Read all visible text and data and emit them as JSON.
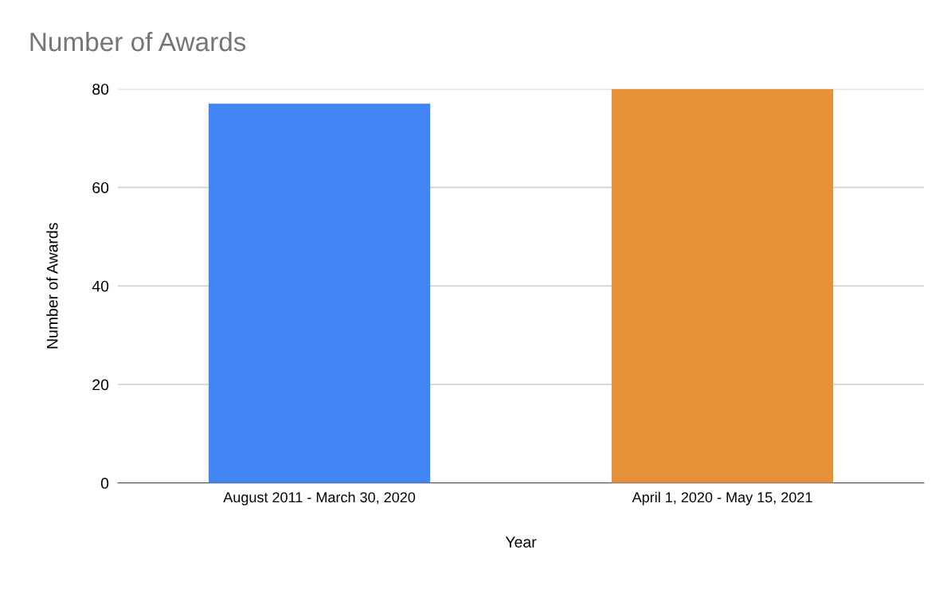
{
  "chart_data": {
    "type": "bar",
    "title": "Number of Awards",
    "xlabel": "Year",
    "ylabel": "Number of Awards",
    "categories": [
      "August 2011 - March 30, 2020",
      "April 1, 2020 - May 15, 2021"
    ],
    "values": [
      77,
      80
    ],
    "colors": [
      "#4285f4",
      "#e69138"
    ],
    "ylim": [
      0,
      80
    ],
    "yticks": [
      0,
      20,
      40,
      60,
      80
    ],
    "grid": "y",
    "legend": false
  }
}
